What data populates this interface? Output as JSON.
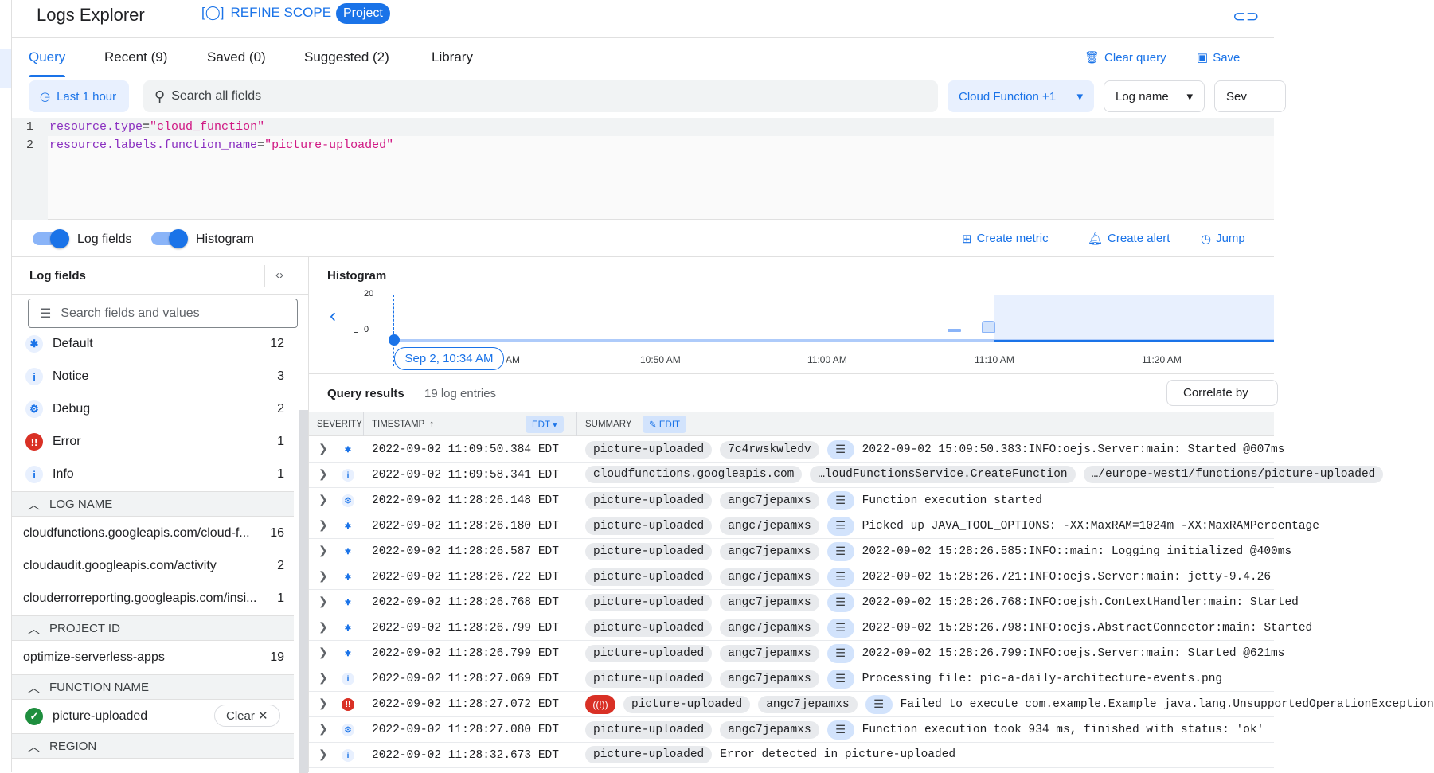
{
  "header": {
    "title": "Logs Explorer",
    "refine_scope": "REFINE SCOPE",
    "scope_badge": "Project"
  },
  "tabs": [
    {
      "label": "Query",
      "active": true
    },
    {
      "label": "Recent (9)"
    },
    {
      "label": "Saved (0)"
    },
    {
      "label": "Suggested (2)"
    },
    {
      "label": "Library"
    }
  ],
  "tab_actions": {
    "clear_query": "Clear query",
    "save": "Save"
  },
  "filters": {
    "time": "Last 1 hour",
    "search_placeholder": "Search all fields",
    "resource": "Cloud Function +1",
    "log_name": "Log name",
    "severity": "Sev"
  },
  "query_lines": [
    {
      "n": "1",
      "key": "resource.type",
      "val": "\"cloud_function\""
    },
    {
      "n": "2",
      "key": "resource.labels.function_name",
      "val": "\"picture-uploaded\""
    }
  ],
  "toggles": {
    "log_fields": "Log fields",
    "histogram": "Histogram"
  },
  "actions": {
    "create_metric": "Create metric",
    "create_alert": "Create alert",
    "jump": "Jump"
  },
  "log_fields": {
    "title": "Log fields",
    "search_placeholder": "Search fields and values",
    "severity": [
      {
        "label": "Default",
        "count": "12",
        "icon": "asterisk"
      },
      {
        "label": "Notice",
        "count": "3",
        "icon": "info"
      },
      {
        "label": "Debug",
        "count": "2",
        "icon": "bug"
      },
      {
        "label": "Error",
        "count": "1",
        "icon": "error"
      },
      {
        "label": "Info",
        "count": "1",
        "icon": "info"
      }
    ],
    "log_name_header": "LOG NAME",
    "log_names": [
      {
        "label": "cloudfunctions.googleapis.com/cloud-f...",
        "count": "16"
      },
      {
        "label": "cloudaudit.googleapis.com/activity",
        "count": "2"
      },
      {
        "label": "clouderrorreporting.googleapis.com/insi...",
        "count": "1"
      }
    ],
    "project_header": "PROJECT ID",
    "projects": [
      {
        "label": "optimize-serverless-apps",
        "count": "19"
      }
    ],
    "function_header": "FUNCTION NAME",
    "function": {
      "label": "picture-uploaded",
      "clear": "Clear"
    },
    "region_header": "REGION"
  },
  "histogram": {
    "title": "Histogram",
    "y_max": "20",
    "y_min": "0",
    "cursor_label": "Sep 2, 10:34 AM",
    "partial_tick": "AM",
    "ticks": [
      "10:50 AM",
      "11:00 AM",
      "11:10 AM",
      "11:20 AM"
    ]
  },
  "results": {
    "title": "Query results",
    "count": "19 log entries",
    "correlate": "Correlate by"
  },
  "table": {
    "severity": "SEVERITY",
    "timestamp": "TIMESTAMP",
    "tz": "EDT",
    "summary": "SUMMARY",
    "edit": "EDIT"
  },
  "colors": {
    "accent": "#1a73e8",
    "error": "#d93025"
  },
  "rows": [
    {
      "sev": "default",
      "ts": "2022-09-02 11:09:50.384 EDT",
      "chips": [
        "picture-uploaded",
        "7c4rwskwledv"
      ],
      "lines": true,
      "msg": "2022-09-02 15:09:50.383:INFO:oejs.Server:main: Started @607ms"
    },
    {
      "sev": "info",
      "ts": "2022-09-02 11:09:58.341 EDT",
      "chips": [
        "cloudfunctions.googleapis.com",
        "…loudFunctionsService.CreateFunction",
        "…/europe-west1/functions/picture-uploaded"
      ],
      "lines": false,
      "msg": ""
    },
    {
      "sev": "debug",
      "ts": "2022-09-02 11:28:26.148 EDT",
      "chips": [
        "picture-uploaded",
        "angc7jepamxs"
      ],
      "lines": true,
      "msg": "Function execution started"
    },
    {
      "sev": "default",
      "ts": "2022-09-02 11:28:26.180 EDT",
      "chips": [
        "picture-uploaded",
        "angc7jepamxs"
      ],
      "lines": true,
      "msg": "Picked up JAVA_TOOL_OPTIONS: -XX:MaxRAM=1024m -XX:MaxRAMPercentage"
    },
    {
      "sev": "default",
      "ts": "2022-09-02 11:28:26.587 EDT",
      "chips": [
        "picture-uploaded",
        "angc7jepamxs"
      ],
      "lines": true,
      "msg": "2022-09-02 15:28:26.585:INFO::main: Logging initialized @400ms"
    },
    {
      "sev": "default",
      "ts": "2022-09-02 11:28:26.722 EDT",
      "chips": [
        "picture-uploaded",
        "angc7jepamxs"
      ],
      "lines": true,
      "msg": "2022-09-02 15:28:26.721:INFO:oejs.Server:main: jetty-9.4.26"
    },
    {
      "sev": "default",
      "ts": "2022-09-02 11:28:26.768 EDT",
      "chips": [
        "picture-uploaded",
        "angc7jepamxs"
      ],
      "lines": true,
      "msg": "2022-09-02 15:28:26.768:INFO:oejsh.ContextHandler:main: Started"
    },
    {
      "sev": "default",
      "ts": "2022-09-02 11:28:26.799 EDT",
      "chips": [
        "picture-uploaded",
        "angc7jepamxs"
      ],
      "lines": true,
      "msg": "2022-09-02 15:28:26.798:INFO:oejs.AbstractConnector:main: Started"
    },
    {
      "sev": "default",
      "ts": "2022-09-02 11:28:26.799 EDT",
      "chips": [
        "picture-uploaded",
        "angc7jepamxs"
      ],
      "lines": true,
      "msg": "2022-09-02 15:28:26.799:INFO:oejs.Server:main: Started @621ms"
    },
    {
      "sev": "info",
      "ts": "2022-09-02 11:28:27.069 EDT",
      "chips": [
        "picture-uploaded",
        "angc7jepamxs"
      ],
      "lines": true,
      "msg": "Processing file: pic-a-daily-architecture-events.png"
    },
    {
      "sev": "error",
      "ts": "2022-09-02 11:28:27.072 EDT",
      "chips": [
        "picture-uploaded",
        "angc7jepamxs"
      ],
      "lines": true,
      "errchip": true,
      "msg": "Failed to execute com.example.Example java.lang.UnsupportedOperationException"
    },
    {
      "sev": "debug",
      "ts": "2022-09-02 11:28:27.080 EDT",
      "chips": [
        "picture-uploaded",
        "angc7jepamxs"
      ],
      "lines": true,
      "msg": "Function execution took 934 ms, finished with status: 'ok'"
    },
    {
      "sev": "info",
      "ts": "2022-09-02 11:28:32.673 EDT",
      "chips": [
        "picture-uploaded"
      ],
      "lines": false,
      "msg": "Error detected in picture-uploaded"
    }
  ]
}
